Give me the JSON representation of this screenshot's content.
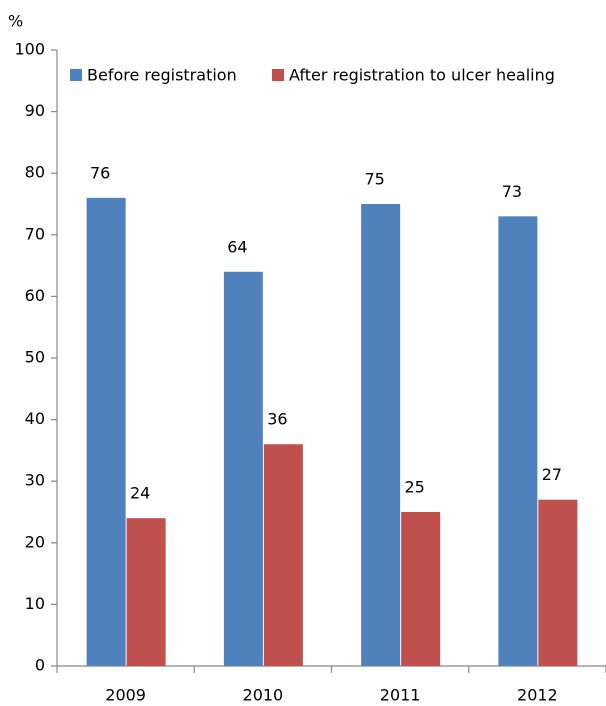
{
  "chart_data": {
    "type": "bar",
    "y_label": "%",
    "categories": [
      "2009",
      "2010",
      "2011",
      "2012"
    ],
    "series": [
      {
        "name": "Before registration",
        "color": "#4f81bd",
        "values": [
          76,
          64,
          75,
          73
        ]
      },
      {
        "name": "After registration to ulcer healing",
        "color": "#c0504d",
        "values": [
          24,
          36,
          25,
          27
        ]
      }
    ],
    "ylim": [
      0,
      100
    ],
    "yticks": [
      0,
      10,
      20,
      30,
      40,
      50,
      60,
      70,
      80,
      90,
      100
    ],
    "grid": false,
    "legend": "top"
  }
}
